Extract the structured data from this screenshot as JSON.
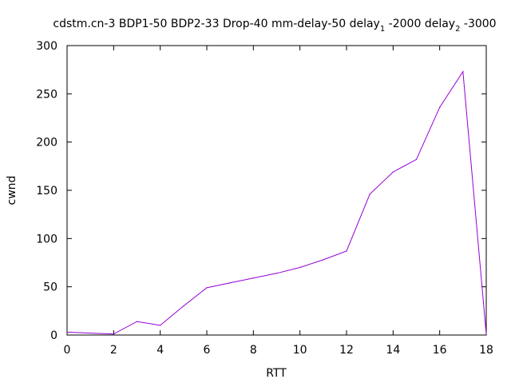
{
  "chart_data": {
    "type": "line",
    "title": {
      "main": "cdstm.cn-3 BDP1-50 BDP2-33 Drop-40 mm-delay-50 delay",
      "sub1": "1",
      "mid": " -2000 delay",
      "sub2": "2",
      "end": " -3000"
    },
    "xlabel": "RTT",
    "ylabel": "cwnd",
    "xlim": [
      0,
      18
    ],
    "ylim": [
      0,
      300
    ],
    "xticks": [
      0,
      2,
      4,
      6,
      8,
      10,
      12,
      14,
      16,
      18
    ],
    "yticks": [
      0,
      50,
      100,
      150,
      200,
      250,
      300
    ],
    "grid": false,
    "series_color": "#9400d3",
    "series": [
      {
        "x": [
          0,
          2,
          3,
          4,
          5,
          6,
          7,
          8,
          9,
          10,
          11,
          12,
          13,
          14,
          15,
          16,
          17,
          18
        ],
        "values": [
          3,
          1,
          14,
          10,
          30,
          49,
          54,
          59,
          64,
          70,
          78,
          87,
          146,
          169,
          182,
          236,
          273,
          1
        ]
      }
    ]
  }
}
